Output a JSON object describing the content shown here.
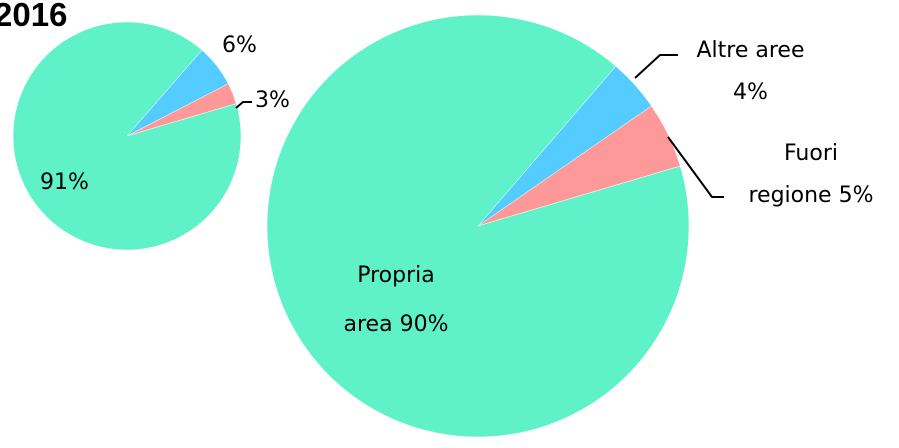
{
  "chart_data": [
    {
      "type": "pie",
      "title": "2016",
      "slices": [
        {
          "label": "",
          "value": 91,
          "value_text": "91%",
          "color": "#5FF2C9"
        },
        {
          "label": "",
          "value": 6,
          "value_text": "6%",
          "color": "#55CCFF"
        },
        {
          "label": "",
          "value": 3,
          "value_text": "3%",
          "color": "#FF9999"
        }
      ]
    },
    {
      "type": "pie",
      "title": "",
      "slices": [
        {
          "label": "Propria area",
          "value": 90,
          "value_text": "90%",
          "color": "#5FF2C9"
        },
        {
          "label": "Altre aree",
          "value": 4,
          "value_text": "4%",
          "color": "#55CCFF"
        },
        {
          "label": "Fuori regione",
          "value": 5,
          "value_text": "5%",
          "color": "#FF9999"
        }
      ]
    }
  ]
}
